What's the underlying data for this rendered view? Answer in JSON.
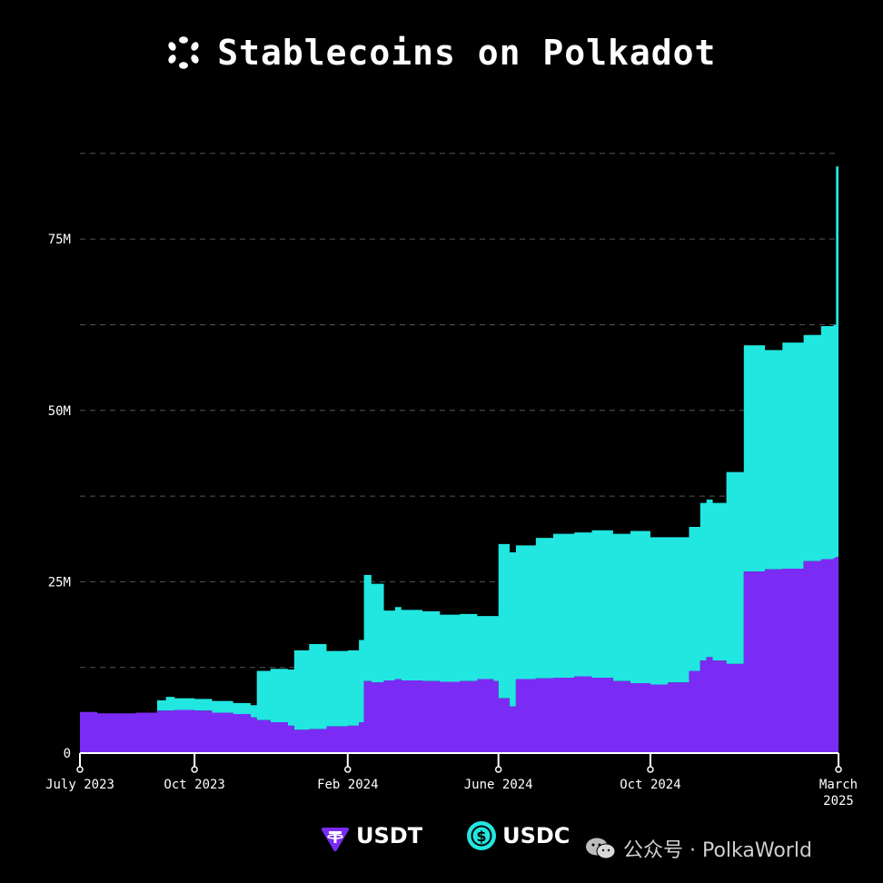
{
  "chart_data": {
    "type": "area",
    "stacked": true,
    "title": "Stablecoins on Polkadot",
    "xlabel": "",
    "ylabel": "",
    "ylim": [
      0,
      90000000
    ],
    "yticks": [
      0,
      25000000,
      50000000,
      75000000
    ],
    "ytick_labels": [
      "0",
      "25M",
      "50M",
      "75M"
    ],
    "xtick_labels": [
      "July 2023",
      "Oct 2023",
      "Feb 2024",
      "June 2024",
      "Oct 2024",
      "March\n2025"
    ],
    "xtick_dates": [
      "2023-07-01",
      "2023-10-01",
      "2024-02-01",
      "2024-06-01",
      "2024-10-01",
      "2025-03-01"
    ],
    "grid": "horizontal dashed",
    "legend": "bottom",
    "colors": {
      "USDT": "#7b2cf4",
      "USDC": "#22e6e0",
      "background": "#000000"
    },
    "x": [
      "2023-07-01",
      "2023-07-15",
      "2023-08-01",
      "2023-08-15",
      "2023-09-01",
      "2023-09-08",
      "2023-09-15",
      "2023-10-01",
      "2023-10-15",
      "2023-11-01",
      "2023-11-15",
      "2023-11-20",
      "2023-12-01",
      "2023-12-15",
      "2023-12-20",
      "2024-01-01",
      "2024-01-15",
      "2024-02-01",
      "2024-02-10",
      "2024-02-14",
      "2024-02-20",
      "2024-03-01",
      "2024-03-10",
      "2024-03-15",
      "2024-04-01",
      "2024-04-15",
      "2024-05-01",
      "2024-05-15",
      "2024-05-28",
      "2024-06-01",
      "2024-06-10",
      "2024-06-15",
      "2024-07-01",
      "2024-07-15",
      "2024-08-01",
      "2024-08-15",
      "2024-09-01",
      "2024-09-15",
      "2024-10-01",
      "2024-10-15",
      "2024-11-01",
      "2024-11-10",
      "2024-11-15",
      "2024-11-20",
      "2024-12-01",
      "2024-12-15",
      "2025-01-01",
      "2025-01-15",
      "2025-02-01",
      "2025-02-15",
      "2025-02-25",
      "2025-02-27",
      "2025-03-01"
    ],
    "series": [
      {
        "name": "USDT",
        "values": [
          6.0,
          5.8,
          5.8,
          5.9,
          6.2,
          6.2,
          6.3,
          6.2,
          5.9,
          5.7,
          5.2,
          4.8,
          4.5,
          4.0,
          3.4,
          3.5,
          3.9,
          4.0,
          4.5,
          10.5,
          10.3,
          10.6,
          10.8,
          10.6,
          10.5,
          10.4,
          10.5,
          10.8,
          10.5,
          8.0,
          6.8,
          10.8,
          10.9,
          11.0,
          11.2,
          11.0,
          10.5,
          10.2,
          10.0,
          10.3,
          12.0,
          13.5,
          14.0,
          13.5,
          13.0,
          26.5,
          26.8,
          26.9,
          28.0,
          28.3,
          28.5,
          28.6,
          28.8
        ]
      },
      {
        "name": "USDC",
        "values": [
          0,
          0,
          0,
          0,
          1.5,
          2.0,
          1.7,
          1.7,
          1.7,
          1.6,
          1.8,
          7.2,
          7.8,
          8.2,
          11.6,
          12.4,
          11.0,
          11.0,
          12.0,
          15.5,
          14.4,
          10.2,
          10.5,
          10.3,
          10.2,
          9.8,
          9.8,
          9.2,
          9.5,
          22.5,
          22.5,
          19.5,
          20.5,
          21.0,
          21.0,
          21.5,
          21.5,
          22.2,
          21.5,
          21.2,
          21.0,
          23.0,
          23.0,
          23.0,
          28.0,
          33.0,
          32.0,
          33.0,
          33.0,
          34.0,
          34.0,
          57.0,
          57.5
        ]
      }
    ],
    "units": "millions USD"
  },
  "legend": {
    "usdt_label": "USDT",
    "usdc_label": "USDC"
  },
  "watermark": {
    "text": "公众号 · PolkaWorld"
  },
  "icons": {
    "logo": "polkadot-logo-icon",
    "usdt": "tether-icon",
    "usdc": "usdc-icon",
    "wechat": "wechat-icon"
  }
}
